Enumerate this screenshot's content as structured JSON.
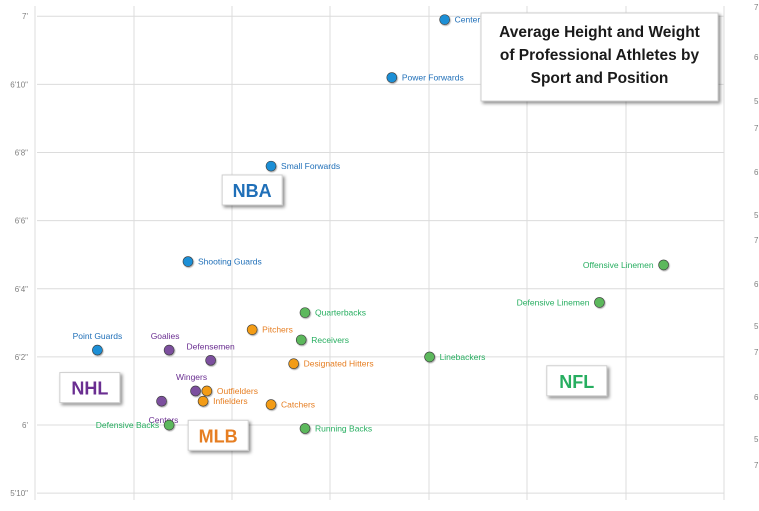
{
  "chart_data": {
    "type": "scatter",
    "title": "Average Height and Weight of Professional Athletes by Sport and Position",
    "title_lines": [
      "Average Height and Weight",
      "of Professional Athletes by",
      "Sport and Position"
    ],
    "xlabel": "",
    "ylabel": "",
    "y_unit": "inches",
    "ylim": [
      69.8,
      84.3
    ],
    "y_ticks": [
      {
        "value": 70,
        "label": "5'10\""
      },
      {
        "value": 72,
        "label": "6'"
      },
      {
        "value": 74,
        "label": "6'2\""
      },
      {
        "value": 76,
        "label": "6'4\""
      },
      {
        "value": 78,
        "label": "6'6\""
      },
      {
        "value": 80,
        "label": "6'8\""
      },
      {
        "value": 82,
        "label": "6'10\""
      },
      {
        "value": 84,
        "label": "7'"
      }
    ],
    "right_axis_fragments": [
      "7",
      "6",
      "5",
      "7",
      "6",
      "5",
      "7",
      "6",
      "5",
      "7",
      "6",
      "5",
      "7"
    ],
    "grid": true,
    "colors": {
      "NBA": "#1a8fd6",
      "NHL": "#7b4f9e",
      "MLB": "#f39c12",
      "NFL": "#5cb85c",
      "NBA_label": "#1f6fb8",
      "NHL_label": "#6a2e91",
      "MLB_label": "#e67e22",
      "NFL_label": "#27ae60"
    },
    "groups": [
      {
        "name": "NBA",
        "label_pos": {
          "weight": 205,
          "height": 78.9
        }
      },
      {
        "name": "NHL",
        "label_pos": {
          "weight": 162,
          "height": 73.1
        }
      },
      {
        "name": "MLB",
        "label_pos": {
          "weight": 196,
          "height": 71.7
        }
      },
      {
        "name": "NFL",
        "label_pos": {
          "weight": 291,
          "height": 73.3
        }
      }
    ],
    "series": [
      {
        "group": "NBA",
        "points": [
          {
            "label": "Centers",
            "weight": 256,
            "height": 83.9,
            "anchor": "right"
          },
          {
            "label": "Power Forwards",
            "weight": 242,
            "height": 82.2,
            "anchor": "right"
          },
          {
            "label": "Small Forwards",
            "weight": 210,
            "height": 79.6,
            "anchor": "right"
          },
          {
            "label": "Shooting Guards",
            "weight": 188,
            "height": 76.8,
            "anchor": "right"
          },
          {
            "label": "Point Guards",
            "weight": 164,
            "height": 74.2,
            "anchor": "above"
          }
        ]
      },
      {
        "group": "NHL",
        "points": [
          {
            "label": "Goalies",
            "weight": 183,
            "height": 74.2,
            "anchor": "above-left"
          },
          {
            "label": "Defensemen",
            "weight": 194,
            "height": 73.9,
            "anchor": "above"
          },
          {
            "label": "Wingers",
            "weight": 190,
            "height": 73.0,
            "anchor": "above-left"
          },
          {
            "label": "Centers",
            "weight": 181,
            "height": 72.7,
            "anchor": "below"
          }
        ]
      },
      {
        "group": "MLB",
        "points": [
          {
            "label": "Pitchers",
            "weight": 205,
            "height": 74.8,
            "anchor": "right"
          },
          {
            "label": "Designated Hitters",
            "weight": 216,
            "height": 73.8,
            "anchor": "right"
          },
          {
            "label": "Outfielders",
            "weight": 193,
            "height": 73.0,
            "anchor": "right"
          },
          {
            "label": "Infielders",
            "weight": 192,
            "height": 72.7,
            "anchor": "right"
          },
          {
            "label": "Catchers",
            "weight": 210,
            "height": 72.6,
            "anchor": "right"
          }
        ]
      },
      {
        "group": "NFL",
        "points": [
          {
            "label": "Offensive Linemen",
            "weight": 314,
            "height": 76.7,
            "anchor": "left"
          },
          {
            "label": "Defensive Linemen",
            "weight": 297,
            "height": 75.6,
            "anchor": "left"
          },
          {
            "label": "Quarterbacks",
            "weight": 219,
            "height": 75.3,
            "anchor": "right"
          },
          {
            "label": "Receivers",
            "weight": 218,
            "height": 74.5,
            "anchor": "right"
          },
          {
            "label": "Linebackers",
            "weight": 252,
            "height": 74.0,
            "anchor": "right"
          },
          {
            "label": "Running Backs",
            "weight": 219,
            "height": 71.9,
            "anchor": "right"
          },
          {
            "label": "Defensive Backs",
            "weight": 183,
            "height": 72.0,
            "anchor": "left"
          }
        ]
      }
    ]
  }
}
